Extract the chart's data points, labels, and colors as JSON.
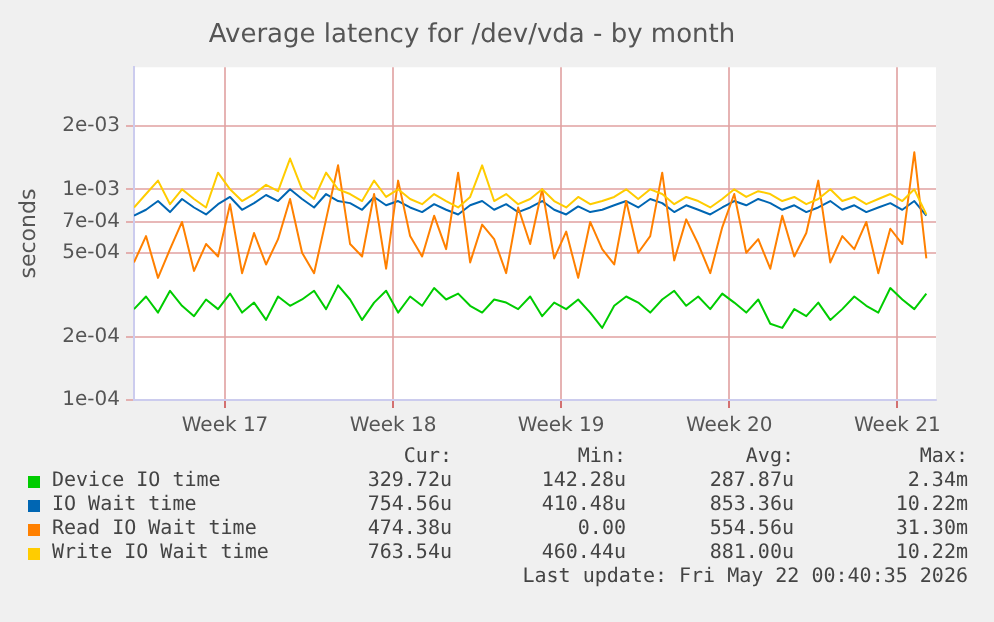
{
  "chart_data": {
    "type": "line",
    "title": "Average latency for /dev/vda - by month",
    "ylabel": "seconds",
    "log": "y",
    "grid": true,
    "legend": "bottom",
    "line_style": "solid",
    "x": [
      "2026-04-18T15:00",
      "2026-04-19T03:00",
      "2026-04-19T15:00",
      "2026-04-20T03:00",
      "2026-04-20T15:00",
      "2026-04-21T03:00",
      "2026-04-21T15:00",
      "2026-04-22T03:00",
      "2026-04-22T15:00",
      "2026-04-23T03:00",
      "2026-04-23T15:00",
      "2026-04-24T03:00",
      "2026-04-24T15:00",
      "2026-04-25T03:00",
      "2026-04-25T15:00",
      "2026-04-26T03:00",
      "2026-04-26T15:00",
      "2026-04-27T03:00",
      "2026-04-27T15:00",
      "2026-04-28T03:00",
      "2026-04-28T15:00",
      "2026-04-29T03:00",
      "2026-04-29T15:00",
      "2026-04-30T03:00",
      "2026-04-30T15:00",
      "2026-05-01T03:00",
      "2026-05-01T15:00",
      "2026-05-02T03:00",
      "2026-05-02T15:00",
      "2026-05-03T03:00",
      "2026-05-03T15:00",
      "2026-05-04T03:00",
      "2026-05-04T15:00",
      "2026-05-05T03:00",
      "2026-05-05T15:00",
      "2026-05-06T03:00",
      "2026-05-06T15:00",
      "2026-05-07T03:00",
      "2026-05-07T15:00",
      "2026-05-08T03:00",
      "2026-05-08T15:00",
      "2026-05-09T03:00",
      "2026-05-09T15:00",
      "2026-05-10T03:00",
      "2026-05-10T15:00",
      "2026-05-11T03:00",
      "2026-05-11T15:00",
      "2026-05-12T03:00",
      "2026-05-12T15:00",
      "2026-05-13T03:00",
      "2026-05-13T15:00",
      "2026-05-14T03:00",
      "2026-05-14T15:00",
      "2026-05-15T03:00",
      "2026-05-15T15:00",
      "2026-05-16T03:00",
      "2026-05-16T15:00",
      "2026-05-17T03:00",
      "2026-05-17T15:00",
      "2026-05-18T03:00",
      "2026-05-18T15:00",
      "2026-05-19T03:00",
      "2026-05-19T15:00",
      "2026-05-20T03:00",
      "2026-05-20T15:00",
      "2026-05-21T03:00",
      "2026-05-21T15:00"
    ],
    "xlim": [
      "2026-04-18T15:00",
      "2026-05-22T00:40"
    ],
    "xticks": [
      {
        "value": "2026-04-22T10:00",
        "label": "Week 17"
      },
      {
        "value": "2026-04-29T10:00",
        "label": "Week 18"
      },
      {
        "value": "2026-05-06T10:00",
        "label": "Week 19"
      },
      {
        "value": "2026-05-13T10:00",
        "label": "Week 20"
      },
      {
        "value": "2026-05-20T10:00",
        "label": "Week 21"
      }
    ],
    "ylim": [
      0.0001,
      0.0038
    ],
    "yticks": [
      {
        "value": 0.0001,
        "label": "1e-04"
      },
      {
        "value": 0.0002,
        "label": "2e-04"
      },
      {
        "value": 0.0005,
        "label": "5e-04"
      },
      {
        "value": 0.0007,
        "label": "7e-04"
      },
      {
        "value": 0.001,
        "label": "1e-03"
      },
      {
        "value": 0.002,
        "label": "2e-03"
      }
    ],
    "series": [
      {
        "name": "Device IO time",
        "color": "#00cc00",
        "values": [
          0.00027,
          0.00031,
          0.00026,
          0.00033,
          0.00028,
          0.00025,
          0.0003,
          0.00027,
          0.00032,
          0.00026,
          0.00029,
          0.00024,
          0.00031,
          0.00028,
          0.0003,
          0.00033,
          0.00027,
          0.00035,
          0.0003,
          0.00024,
          0.00029,
          0.00033,
          0.00026,
          0.00031,
          0.00028,
          0.00034,
          0.0003,
          0.00032,
          0.00028,
          0.00026,
          0.0003,
          0.00029,
          0.00027,
          0.00031,
          0.00025,
          0.00029,
          0.00027,
          0.0003,
          0.00026,
          0.00022,
          0.00028,
          0.00031,
          0.00029,
          0.00026,
          0.0003,
          0.00033,
          0.00028,
          0.00031,
          0.00027,
          0.00032,
          0.00029,
          0.00026,
          0.0003,
          0.00023,
          0.00022,
          0.00027,
          0.00025,
          0.00029,
          0.00024,
          0.00027,
          0.00031,
          0.00028,
          0.00026,
          0.00034,
          0.0003,
          0.00027,
          0.00032
        ]
      },
      {
        "name": "IO Wait time",
        "color": "#0066b3",
        "values": [
          0.00075,
          0.0008,
          0.00088,
          0.00078,
          0.0009,
          0.00082,
          0.00076,
          0.00085,
          0.00092,
          0.0008,
          0.00086,
          0.00094,
          0.00088,
          0.001,
          0.0009,
          0.00082,
          0.00095,
          0.00088,
          0.00086,
          0.0008,
          0.00092,
          0.00084,
          0.00088,
          0.00082,
          0.00078,
          0.00085,
          0.0008,
          0.00076,
          0.00084,
          0.00088,
          0.0008,
          0.00085,
          0.00078,
          0.00082,
          0.00088,
          0.0008,
          0.00076,
          0.00083,
          0.00078,
          0.0008,
          0.00084,
          0.00088,
          0.00082,
          0.0009,
          0.00086,
          0.00078,
          0.00084,
          0.0008,
          0.00076,
          0.00082,
          0.00088,
          0.00084,
          0.0009,
          0.00086,
          0.0008,
          0.00084,
          0.00078,
          0.00082,
          0.00088,
          0.0008,
          0.00084,
          0.00078,
          0.00082,
          0.00086,
          0.0008,
          0.00088,
          0.00075
        ]
      },
      {
        "name": "Read IO Wait time",
        "color": "#ff8000",
        "values": [
          0.00045,
          0.0006,
          0.00038,
          0.00052,
          0.0007,
          0.00041,
          0.00055,
          0.00048,
          0.00085,
          0.0004,
          0.00062,
          0.00044,
          0.00058,
          0.0009,
          0.0005,
          0.0004,
          0.00072,
          0.0013,
          0.00055,
          0.00048,
          0.00095,
          0.00042,
          0.0011,
          0.0006,
          0.00048,
          0.00075,
          0.00052,
          0.0012,
          0.00045,
          0.00068,
          0.00058,
          0.0004,
          0.00082,
          0.00055,
          0.001,
          0.00047,
          0.00063,
          0.00038,
          0.0007,
          0.00052,
          0.00044,
          0.00088,
          0.0005,
          0.0006,
          0.0012,
          0.00046,
          0.00072,
          0.00055,
          0.0004,
          0.00066,
          0.00095,
          0.0005,
          0.00058,
          0.00042,
          0.00075,
          0.00048,
          0.00062,
          0.0011,
          0.00045,
          0.0006,
          0.00052,
          0.0007,
          0.0004,
          0.00065,
          0.00055,
          0.0015,
          0.00047
        ]
      },
      {
        "name": "Write IO Wait time",
        "color": "#ffcc00",
        "values": [
          0.00082,
          0.00095,
          0.0011,
          0.00085,
          0.001,
          0.0009,
          0.00082,
          0.0012,
          0.001,
          0.00088,
          0.00095,
          0.00105,
          0.00098,
          0.0014,
          0.001,
          0.0009,
          0.0012,
          0.001,
          0.00095,
          0.00088,
          0.0011,
          0.00092,
          0.001,
          0.0009,
          0.00085,
          0.00095,
          0.00088,
          0.00082,
          0.00092,
          0.0013,
          0.00088,
          0.00095,
          0.00085,
          0.0009,
          0.001,
          0.00088,
          0.00082,
          0.00092,
          0.00085,
          0.00088,
          0.00092,
          0.001,
          0.0009,
          0.001,
          0.00095,
          0.00085,
          0.00092,
          0.00088,
          0.00082,
          0.0009,
          0.001,
          0.00092,
          0.00098,
          0.00095,
          0.00088,
          0.00092,
          0.00085,
          0.0009,
          0.001,
          0.00088,
          0.00092,
          0.00085,
          0.0009,
          0.00095,
          0.00088,
          0.001,
          0.00076
        ]
      }
    ],
    "annotations": [
      "Cur:",
      "Min:",
      "Avg:",
      "Max:",
      "329.72u",
      "142.28u",
      "287.87u",
      "2.34m",
      "754.56u",
      "410.48u",
      "853.36u",
      "10.22m",
      "474.38u",
      "0.00",
      "554.56u",
      "31.30m",
      "763.54u",
      "460.44u",
      "881.00u",
      "10.22m",
      "Last update: Fri May 22 00:40:35 2026"
    ]
  }
}
